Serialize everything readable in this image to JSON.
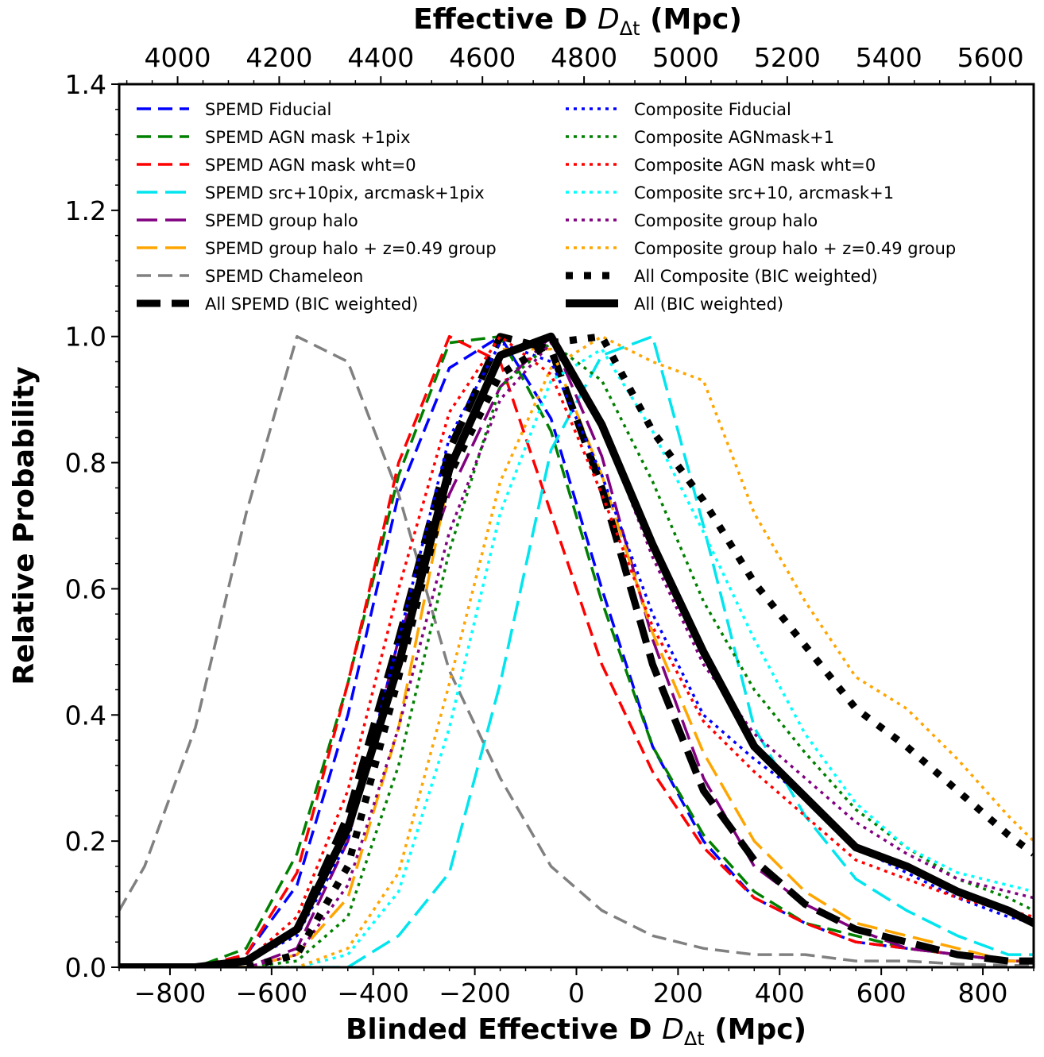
{
  "chart_data": {
    "type": "line",
    "xlabel": "Blinded Effective D",
    "xlabel_sub": "Δt",
    "xlabel_unit": " (Mpc)",
    "top_xlabel": "Effective D",
    "top_xlabel_sub": "Δt",
    "top_xlabel_unit": " (Mpc)",
    "ylabel": "Relative Probability",
    "xlim": [
      -900,
      900
    ],
    "ylim": [
      0,
      1.4
    ],
    "x_ticks": [
      -800,
      -600,
      -400,
      -200,
      0,
      200,
      400,
      600,
      800
    ],
    "x_tick_labels": [
      "−800",
      "−600",
      "−400",
      "−200",
      "0",
      "200",
      "400",
      "600",
      "800"
    ],
    "y_ticks": [
      0.0,
      0.2,
      0.4,
      0.6,
      0.8,
      1.0,
      1.2,
      1.4
    ],
    "y_tick_labels": [
      "0.0",
      "0.2",
      "0.4",
      "0.6",
      "0.8",
      "1.0",
      "1.2",
      "1.4"
    ],
    "top_ticks": [
      4000,
      4200,
      4400,
      4600,
      4800,
      5000,
      5200,
      5400,
      5600
    ],
    "top_tick_labels": [
      "4000",
      "4200",
      "4400",
      "4600",
      "4800",
      "5000",
      "5200",
      "5400",
      "5600"
    ],
    "top_axis_offset": 4785,
    "legend_position": "top",
    "grid": false,
    "x": [
      -900,
      -850,
      -750,
      -650,
      -550,
      -450,
      -350,
      -250,
      -150,
      -50,
      50,
      150,
      250,
      350,
      450,
      550,
      650,
      750,
      850,
      900
    ],
    "series": [
      {
        "name": "SPEMD Fiducial",
        "color": "#0000ff",
        "style": "dashed",
        "values": [
          0,
          0,
          0,
          0.02,
          0.13,
          0.4,
          0.75,
          0.95,
          1.0,
          0.87,
          0.6,
          0.35,
          0.2,
          0.11,
          0.07,
          0.04,
          0.03,
          0.02,
          0.01,
          0.01
        ]
      },
      {
        "name": "SPEMD AGN mask +1pix",
        "color": "#008000",
        "style": "dashed",
        "values": [
          0,
          0,
          0,
          0.03,
          0.18,
          0.45,
          0.78,
          0.99,
          1.0,
          0.85,
          0.58,
          0.35,
          0.21,
          0.12,
          0.07,
          0.05,
          0.03,
          0.02,
          0.01,
          0.01
        ]
      },
      {
        "name": "SPEMD AGN mask wht=0",
        "color": "#ff0000",
        "style": "dashed",
        "values": [
          0,
          0,
          0,
          0.02,
          0.15,
          0.45,
          0.8,
          1.0,
          0.96,
          0.72,
          0.48,
          0.31,
          0.19,
          0.11,
          0.07,
          0.04,
          0.03,
          0.02,
          0.01,
          0.01
        ]
      },
      {
        "name": "SPEMD src+10pix, arcmask+1pix",
        "color": "#00e5ee",
        "style": "dashed-long",
        "values": [
          0,
          0,
          0,
          0,
          0,
          0,
          0.05,
          0.15,
          0.45,
          0.82,
          0.97,
          1.0,
          0.7,
          0.38,
          0.24,
          0.14,
          0.09,
          0.05,
          0.02,
          0.02
        ]
      },
      {
        "name": "SPEMD group halo",
        "color": "#800080",
        "style": "dashed-long",
        "values": [
          0,
          0,
          0,
          0,
          0.03,
          0.2,
          0.52,
          0.75,
          0.92,
          1.0,
          0.81,
          0.52,
          0.3,
          0.16,
          0.1,
          0.06,
          0.03,
          0.02,
          0.01,
          0.01
        ]
      },
      {
        "name": "SPEMD group halo + z=0.49 group",
        "color": "#ffa500",
        "style": "dashed-long",
        "values": [
          0,
          0,
          0,
          0,
          0.02,
          0.11,
          0.38,
          0.78,
          0.98,
          0.98,
          0.78,
          0.53,
          0.34,
          0.2,
          0.12,
          0.07,
          0.05,
          0.03,
          0.01,
          0.01
        ]
      },
      {
        "name": "SPEMD Chameleon",
        "color": "#808080",
        "style": "dashed",
        "values": [
          0.09,
          0.16,
          0.38,
          0.72,
          1.0,
          0.96,
          0.75,
          0.47,
          0.3,
          0.16,
          0.09,
          0.05,
          0.03,
          0.02,
          0.02,
          0.01,
          0.01,
          0.005,
          0.003,
          0.002
        ]
      },
      {
        "name": "All SPEMD (BIC weighted)",
        "color": "#000000",
        "style": "dashed-thick",
        "values": [
          0,
          0,
          0,
          0.01,
          0.06,
          0.24,
          0.52,
          0.82,
          1.0,
          0.98,
          0.76,
          0.48,
          0.28,
          0.17,
          0.1,
          0.06,
          0.04,
          0.02,
          0.01,
          0.01
        ]
      },
      {
        "name": "Composite Fiducial",
        "color": "#0000ff",
        "style": "dotted",
        "values": [
          0,
          0,
          0,
          0.01,
          0.05,
          0.2,
          0.52,
          0.84,
          0.99,
          0.96,
          0.78,
          0.56,
          0.4,
          0.33,
          0.27,
          0.19,
          0.15,
          0.11,
          0.08,
          0.07
        ]
      },
      {
        "name": "Composite AGNmask+1",
        "color": "#008000",
        "style": "dotted",
        "values": [
          0,
          0,
          0,
          0,
          0.01,
          0.08,
          0.32,
          0.66,
          0.92,
          0.99,
          0.93,
          0.77,
          0.58,
          0.44,
          0.34,
          0.25,
          0.19,
          0.14,
          0.11,
          0.09
        ]
      },
      {
        "name": "Composite AGN mask wht=0",
        "color": "#ff0000",
        "style": "dotted",
        "values": [
          0,
          0,
          0,
          0.01,
          0.08,
          0.28,
          0.6,
          0.88,
          1.0,
          0.94,
          0.75,
          0.54,
          0.39,
          0.31,
          0.24,
          0.17,
          0.14,
          0.11,
          0.09,
          0.08
        ]
      },
      {
        "name": "Composite src+10, arcmask+1",
        "color": "#00ffff",
        "style": "dotted",
        "values": [
          0,
          0,
          0,
          0,
          0,
          0.02,
          0.12,
          0.38,
          0.72,
          0.93,
          0.98,
          0.85,
          0.69,
          0.52,
          0.37,
          0.26,
          0.19,
          0.15,
          0.13,
          0.12
        ]
      },
      {
        "name": "Composite group halo",
        "color": "#800080",
        "style": "dotted",
        "values": [
          0,
          0,
          0,
          0,
          0.02,
          0.13,
          0.38,
          0.69,
          0.9,
          0.99,
          0.86,
          0.65,
          0.48,
          0.37,
          0.3,
          0.23,
          0.18,
          0.14,
          0.12,
          0.11
        ]
      },
      {
        "name": "Composite group halo + z=0.49 group",
        "color": "#ffa500",
        "style": "dotted",
        "values": [
          0,
          0,
          0,
          0,
          0,
          0.03,
          0.15,
          0.45,
          0.77,
          0.95,
          1.0,
          0.96,
          0.93,
          0.72,
          0.58,
          0.46,
          0.41,
          0.33,
          0.24,
          0.2
        ]
      },
      {
        "name": "All Composite (BIC weighted)",
        "color": "#000000",
        "style": "dotted-thick",
        "values": [
          0,
          0,
          0,
          0,
          0.02,
          0.16,
          0.46,
          0.78,
          0.94,
          0.99,
          1.0,
          0.85,
          0.74,
          0.61,
          0.51,
          0.41,
          0.35,
          0.28,
          0.21,
          0.18
        ]
      },
      {
        "name": "All (BIC weighted)",
        "color": "#000000",
        "style": "solid-thick",
        "values": [
          0,
          0,
          0,
          0.01,
          0.06,
          0.22,
          0.48,
          0.79,
          0.97,
          1.0,
          0.86,
          0.67,
          0.5,
          0.35,
          0.27,
          0.19,
          0.16,
          0.12,
          0.09,
          0.07
        ]
      }
    ]
  }
}
